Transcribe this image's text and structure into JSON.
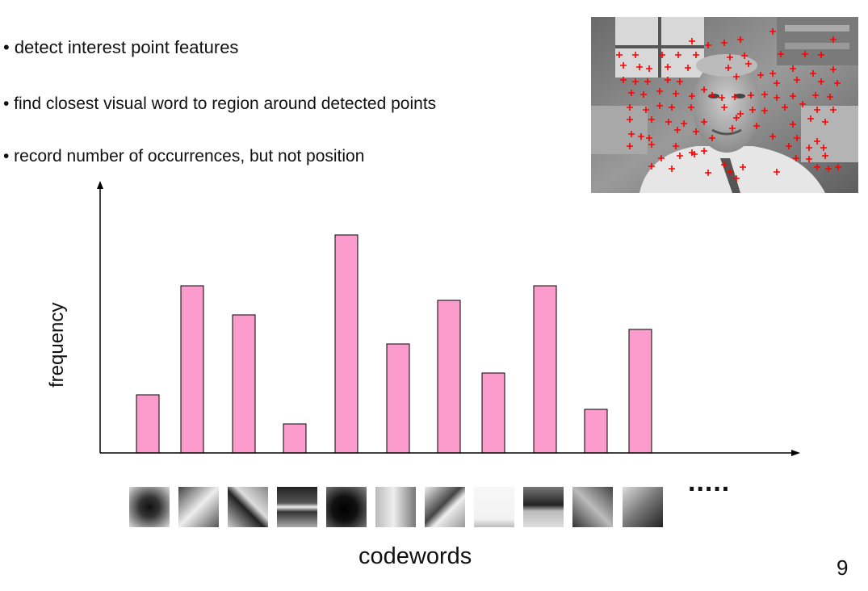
{
  "bullets": [
    "• detect interest point features",
    "• find closest visual word to region around detected points",
    "• record number of occurrences, but not position"
  ],
  "chart_data": {
    "type": "bar",
    "values": [
      8,
      23,
      19,
      4,
      30,
      15,
      21,
      11,
      23,
      6,
      17
    ],
    "ylim": [
      0,
      34
    ],
    "xlabel": "codewords",
    "ylabel": "frequency",
    "bar_color": "#fb9ccc",
    "grid": false
  },
  "codeword_patches": [
    "patch-dark-center",
    "patch-diagonal-bright",
    "patch-diagonal-edge",
    "patch-horizontal-bars",
    "patch-dark-blob",
    "patch-vertical-edge",
    "patch-diagonal-dark",
    "patch-uniform-light",
    "patch-horizontal-edge",
    "patch-diagonal-gradient",
    "patch-corner-bright"
  ],
  "ellipsis": ".....",
  "page_number": "9",
  "photo_icon": "face-photo-with-interest-points",
  "marker_color": "#ff0000"
}
